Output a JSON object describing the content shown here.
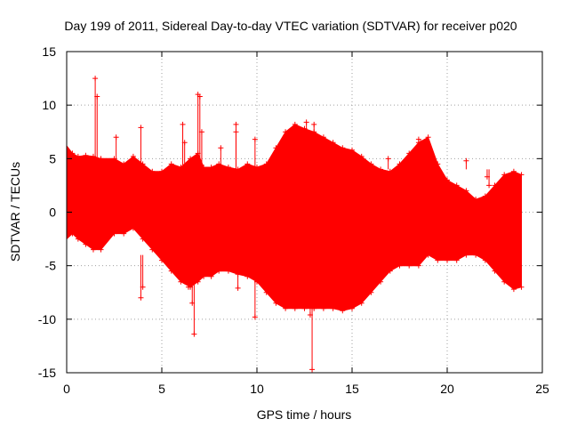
{
  "chart_data": {
    "type": "scatter",
    "title": "Day 199 of 2011, Sidereal Day-to-day VTEC variation (SDTVAR) for receiver p020",
    "xlabel": "GPS time / hours",
    "ylabel": "SDTVAR / TECUs",
    "xlim": [
      0,
      25
    ],
    "ylim": [
      -15,
      15
    ],
    "xticks": [
      0,
      5,
      10,
      15,
      20,
      25
    ],
    "yticks": [
      -15,
      -10,
      -5,
      0,
      5,
      10,
      15
    ],
    "grid": true,
    "marker": "+",
    "series_color": "#ff0000",
    "envelope": {
      "x": [
        0.0,
        0.3,
        0.6,
        1.0,
        1.4,
        1.8,
        2.5,
        3.0,
        3.5,
        4.0,
        4.5,
        5.0,
        5.5,
        6.0,
        6.5,
        6.9,
        7.2,
        7.6,
        8.0,
        8.5,
        9.0,
        9.5,
        10.0,
        10.5,
        11.0,
        11.5,
        12.0,
        12.5,
        13.0,
        13.5,
        14.0,
        14.5,
        15.0,
        15.5,
        16.0,
        16.5,
        17.0,
        17.5,
        18.0,
        18.5,
        19.0,
        19.5,
        20.0,
        20.5,
        21.0,
        21.5,
        22.0,
        22.5,
        23.0,
        23.5,
        23.9
      ],
      "upper": [
        6.2,
        5.5,
        5.2,
        5.3,
        5.2,
        5.0,
        5.0,
        4.5,
        5.2,
        4.5,
        3.8,
        3.8,
        4.5,
        4.2,
        5.0,
        5.5,
        4.2,
        4.2,
        4.5,
        4.2,
        4.0,
        4.5,
        4.2,
        4.5,
        6.0,
        7.5,
        8.2,
        7.8,
        7.5,
        7.0,
        6.5,
        6.0,
        5.8,
        5.2,
        4.5,
        4.0,
        3.8,
        4.5,
        5.5,
        6.5,
        7.0,
        4.5,
        3.0,
        2.5,
        2.0,
        1.2,
        1.5,
        2.5,
        3.5,
        3.8,
        3.5
      ],
      "lower": [
        -2.5,
        -2.0,
        -2.5,
        -3.0,
        -3.5,
        -3.5,
        -2.0,
        -2.0,
        -1.5,
        -2.5,
        -3.5,
        -4.5,
        -5.5,
        -6.5,
        -7.0,
        -6.5,
        -6.0,
        -6.0,
        -5.5,
        -5.5,
        -5.8,
        -6.0,
        -6.5,
        -7.5,
        -8.5,
        -9.0,
        -9.0,
        -9.0,
        -9.0,
        -9.0,
        -9.0,
        -9.2,
        -9.0,
        -8.5,
        -7.5,
        -6.5,
        -5.5,
        -5.0,
        -5.0,
        -5.0,
        -4.0,
        -4.5,
        -4.5,
        -4.5,
        -4.0,
        -4.0,
        -4.5,
        -5.5,
        -6.5,
        -7.2,
        -7.0
      ]
    },
    "outliers": {
      "x": [
        1.5,
        1.6,
        2.6,
        3.9,
        3.9,
        4.0,
        6.1,
        6.2,
        6.4,
        6.6,
        6.7,
        6.9,
        7.0,
        7.1,
        8.1,
        8.9,
        8.9,
        9.0,
        9.9,
        9.9,
        12.6,
        12.8,
        12.9,
        13.0,
        16.5,
        16.9,
        18.5,
        18.6,
        21.0,
        22.1,
        22.2
      ],
      "y": [
        12.5,
        10.8,
        7.0,
        7.9,
        -8.0,
        -7.0,
        8.2,
        6.5,
        -7.0,
        -8.5,
        -11.4,
        11.0,
        10.8,
        7.5,
        6.0,
        8.2,
        7.5,
        -7.1,
        -9.8,
        6.8,
        8.4,
        -9.6,
        -14.7,
        8.2,
        -4.3,
        5.0,
        6.8,
        6.5,
        4.8,
        3.3,
        2.5
      ]
    }
  }
}
